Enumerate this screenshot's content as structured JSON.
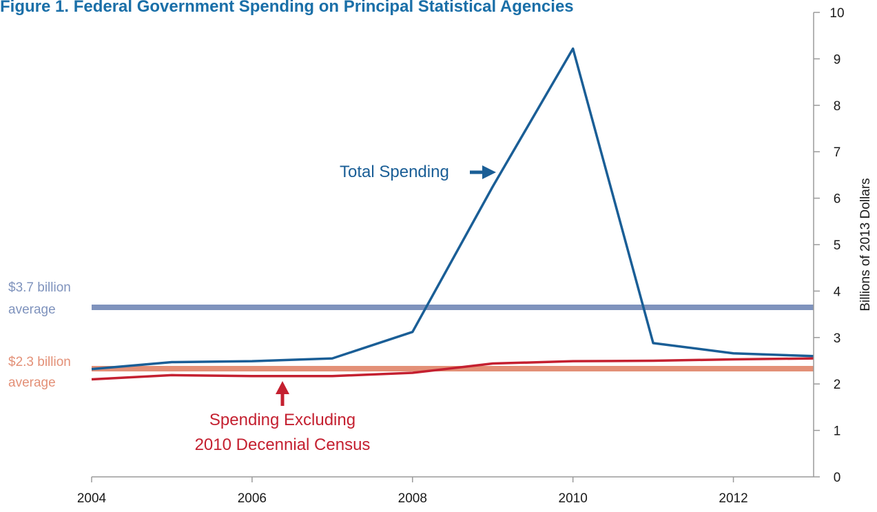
{
  "chart_data": {
    "type": "line",
    "title": "Figure 1. Federal Government Spending on Principal Statistical Agencies",
    "ylabel": "Billions of 2013 Dollars",
    "xlabel": "",
    "xlim": [
      2004,
      2013
    ],
    "ylim": [
      0,
      10
    ],
    "x_ticks": [
      2004,
      2006,
      2008,
      2010,
      2012
    ],
    "y_ticks": [
      0,
      1,
      2,
      3,
      4,
      5,
      6,
      7,
      8,
      9,
      10
    ],
    "y_axis_position": "right",
    "grid": false,
    "x": [
      2004,
      2005,
      2006,
      2007,
      2008,
      2009,
      2010,
      2011,
      2012,
      2013
    ],
    "series": [
      {
        "name": "Total Spending",
        "color": "#1a5e96",
        "values": [
          2.32,
          2.47,
          2.49,
          2.55,
          3.12,
          6.25,
          9.22,
          2.88,
          2.66,
          2.6
        ]
      },
      {
        "name": "Spending Excluding 2010 Decennial Census",
        "color": "#c42030",
        "values": [
          2.1,
          2.19,
          2.17,
          2.17,
          2.24,
          2.44,
          2.49,
          2.5,
          2.53,
          2.55
        ]
      }
    ],
    "reference_lines": [
      {
        "value": 3.65,
        "color": "#7f93bd",
        "label_line1": "$3.7 billion",
        "label_line2": "average"
      },
      {
        "value": 2.33,
        "color": "#e39077",
        "label_line1": "$2.3 billion",
        "label_line2": "average"
      }
    ],
    "annotations": {
      "total": {
        "text": "Total Spending",
        "color": "#1a5e96"
      },
      "excluding": {
        "line1": "Spending Excluding",
        "line2": "2010 Decennial Census",
        "color": "#c42030"
      }
    },
    "title_color": "#1a6fa8",
    "axis_color": "#9a9a9a"
  }
}
